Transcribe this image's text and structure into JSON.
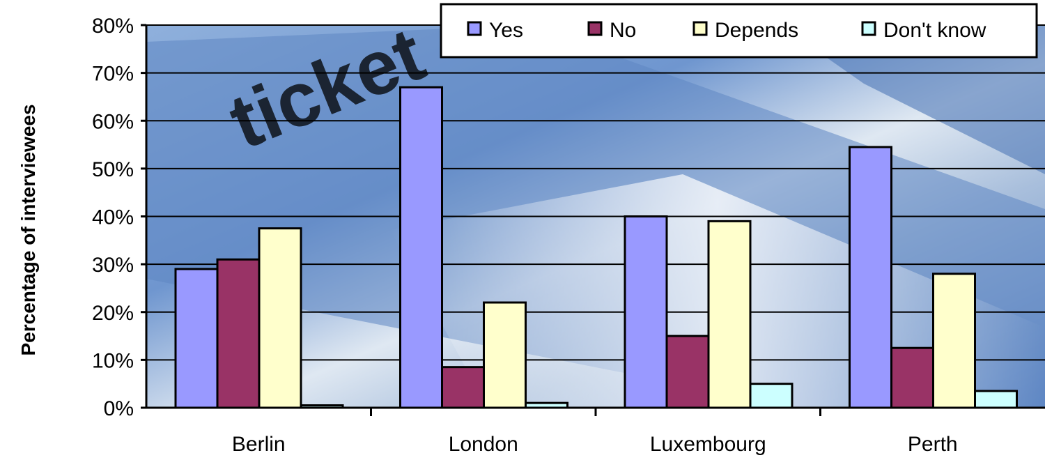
{
  "chart_data": {
    "type": "bar",
    "categories": [
      "Berlin",
      "London",
      "Luxembourg",
      "Perth"
    ],
    "series": [
      {
        "name": "Yes",
        "color": "#9999ff",
        "values": [
          29,
          67,
          40,
          54.5
        ]
      },
      {
        "name": "No",
        "color": "#993366",
        "values": [
          31,
          8.5,
          15,
          12.5
        ]
      },
      {
        "name": "Depends",
        "color": "#ffffcc",
        "values": [
          37.5,
          22,
          39,
          28
        ]
      },
      {
        "name": "Don't know",
        "color": "#ccffff",
        "values": [
          0.5,
          1,
          5,
          3.5
        ]
      }
    ],
    "ylabel": "Percentage of interviewees",
    "ylim": [
      0,
      80
    ],
    "yticks": [
      "0%",
      "10%",
      "20%",
      "30%",
      "40%",
      "50%",
      "60%",
      "70%",
      "80%"
    ],
    "grid": true,
    "legend_position": "top-right",
    "background_text": "ticket"
  }
}
